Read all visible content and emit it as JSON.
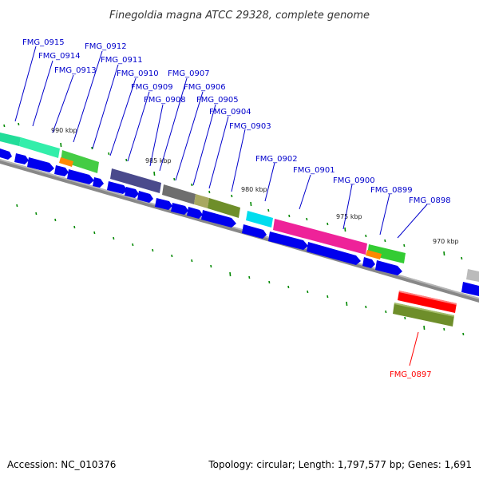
{
  "title": "Finegoldia magna ATCC 29328, complete genome",
  "footer": {
    "accession": "Accession: NC_010376",
    "summary": "Topology: circular; Length: 1,797,577 bp; Genes: 1,691"
  },
  "scale_labels": [
    "990 kbp",
    "985 kbp",
    "980 kbp",
    "975 kbp",
    "970 kbp"
  ],
  "gene_labels": [
    {
      "text": "FMG_0915",
      "color": "#0000cc"
    },
    {
      "text": "FMG_0914",
      "color": "#0000cc"
    },
    {
      "text": "FMG_0913",
      "color": "#0000cc"
    },
    {
      "text": "FMG_0912",
      "color": "#0000cc"
    },
    {
      "text": "FMG_0911",
      "color": "#0000cc"
    },
    {
      "text": "FMG_0910",
      "color": "#0000cc"
    },
    {
      "text": "FMG_0909",
      "color": "#0000cc"
    },
    {
      "text": "FMG_0908",
      "color": "#0000cc"
    },
    {
      "text": "FMG_0907",
      "color": "#0000cc"
    },
    {
      "text": "FMG_0906",
      "color": "#0000cc"
    },
    {
      "text": "FMG_0905",
      "color": "#0000cc"
    },
    {
      "text": "FMG_0904",
      "color": "#0000cc"
    },
    {
      "text": "FMG_0903",
      "color": "#0000cc"
    },
    {
      "text": "FMG_0902",
      "color": "#0000cc"
    },
    {
      "text": "FMG_0901",
      "color": "#0000cc"
    },
    {
      "text": "FMG_0900",
      "color": "#0000cc"
    },
    {
      "text": "FMG_0899",
      "color": "#0000cc"
    },
    {
      "text": "FMG_0898",
      "color": "#0000cc"
    },
    {
      "text": "FMG_0897",
      "color": "#ff0000"
    }
  ],
  "colors": {
    "forward_gene": "#0000ee",
    "backbone": "#888888",
    "tick": "#008800",
    "highlight_gene": "#ff0000"
  }
}
